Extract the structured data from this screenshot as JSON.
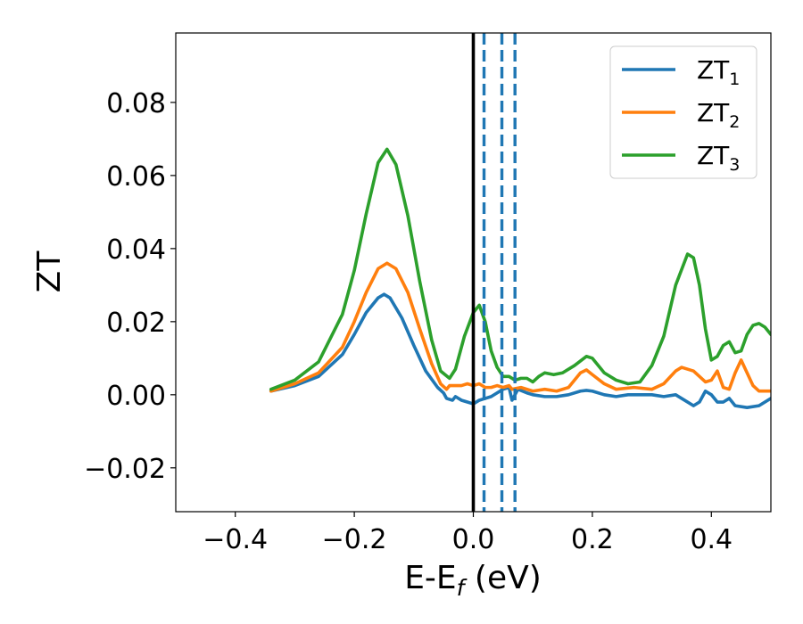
{
  "chart_data": {
    "type": "line",
    "xlabel": {
      "main": "E-E",
      "sub": "f",
      "suffix": " (eV)"
    },
    "ylabel": "ZT",
    "xlim": [
      -0.5,
      0.5
    ],
    "ylim": [
      -0.032,
      0.099
    ],
    "xticks": [
      {
        "value": -0.4,
        "label": "−0.4"
      },
      {
        "value": -0.2,
        "label": "−0.2"
      },
      {
        "value": 0.0,
        "label": "0.0"
      },
      {
        "value": 0.2,
        "label": "0.2"
      },
      {
        "value": 0.4,
        "label": "0.4"
      }
    ],
    "yticks": [
      {
        "value": -0.02,
        "label": "−0.02"
      },
      {
        "value": 0.0,
        "label": "0.00"
      },
      {
        "value": 0.02,
        "label": "0.02"
      },
      {
        "value": 0.04,
        "label": "0.04"
      },
      {
        "value": 0.06,
        "label": "0.06"
      },
      {
        "value": 0.08,
        "label": "0.08"
      }
    ],
    "grid": false,
    "legend_position": "top-right",
    "vertical_lines": [
      {
        "x": 0.0,
        "style": "solid",
        "color": "#000000"
      },
      {
        "x": 0.018,
        "style": "dashed",
        "color": "#1f77b4"
      },
      {
        "x": 0.048,
        "style": "dashed",
        "color": "#1f77b4"
      },
      {
        "x": 0.07,
        "style": "dashed",
        "color": "#1f77b4"
      }
    ],
    "series": [
      {
        "name": "ZT",
        "name_sub": "1",
        "color": "#1f77b4",
        "points": [
          [
            -0.34,
            0.001
          ],
          [
            -0.3,
            0.0025
          ],
          [
            -0.26,
            0.005
          ],
          [
            -0.22,
            0.011
          ],
          [
            -0.2,
            0.0165
          ],
          [
            -0.18,
            0.0225
          ],
          [
            -0.16,
            0.0265
          ],
          [
            -0.15,
            0.0275
          ],
          [
            -0.14,
            0.0265
          ],
          [
            -0.12,
            0.021
          ],
          [
            -0.1,
            0.0135
          ],
          [
            -0.08,
            0.0065
          ],
          [
            -0.06,
            0.002
          ],
          [
            -0.05,
            0.0005
          ],
          [
            -0.045,
            -0.001
          ],
          [
            -0.035,
            -0.0015
          ],
          [
            -0.03,
            -0.0005
          ],
          [
            -0.02,
            -0.0015
          ],
          [
            -0.01,
            -0.002
          ],
          [
            0.0,
            -0.0025
          ],
          [
            0.01,
            -0.0015
          ],
          [
            0.02,
            -0.001
          ],
          [
            0.03,
            -0.0005
          ],
          [
            0.04,
            0.0005
          ],
          [
            0.05,
            0.0015
          ],
          [
            0.06,
            0.002
          ],
          [
            0.065,
            -0.0015
          ],
          [
            0.075,
            0.0015
          ],
          [
            0.09,
            0.0005
          ],
          [
            0.1,
            0.0
          ],
          [
            0.12,
            -0.0005
          ],
          [
            0.14,
            -0.0005
          ],
          [
            0.16,
            0.0
          ],
          [
            0.18,
            0.001
          ],
          [
            0.19,
            0.0012
          ],
          [
            0.2,
            0.001
          ],
          [
            0.22,
            0.0
          ],
          [
            0.24,
            -0.0005
          ],
          [
            0.26,
            0.0
          ],
          [
            0.28,
            0.0
          ],
          [
            0.3,
            0.0
          ],
          [
            0.32,
            -0.0005
          ],
          [
            0.34,
            0.0
          ],
          [
            0.35,
            -0.001
          ],
          [
            0.37,
            -0.003
          ],
          [
            0.38,
            -0.002
          ],
          [
            0.39,
            0.001
          ],
          [
            0.4,
            0.0
          ],
          [
            0.41,
            -0.002
          ],
          [
            0.42,
            -0.002
          ],
          [
            0.43,
            -0.001
          ],
          [
            0.44,
            -0.003
          ],
          [
            0.46,
            -0.0035
          ],
          [
            0.48,
            -0.003
          ],
          [
            0.5,
            -0.001
          ]
        ]
      },
      {
        "name": "ZT",
        "name_sub": "2",
        "color": "#ff7f0e",
        "points": [
          [
            -0.34,
            0.001
          ],
          [
            -0.3,
            0.003
          ],
          [
            -0.26,
            0.006
          ],
          [
            -0.22,
            0.013
          ],
          [
            -0.2,
            0.02
          ],
          [
            -0.18,
            0.028
          ],
          [
            -0.16,
            0.0345
          ],
          [
            -0.145,
            0.036
          ],
          [
            -0.13,
            0.0345
          ],
          [
            -0.11,
            0.028
          ],
          [
            -0.09,
            0.018
          ],
          [
            -0.07,
            0.0085
          ],
          [
            -0.055,
            0.003
          ],
          [
            -0.045,
            0.0015
          ],
          [
            -0.04,
            0.0025
          ],
          [
            -0.03,
            0.0025
          ],
          [
            -0.02,
            0.0025
          ],
          [
            -0.01,
            0.003
          ],
          [
            0.0,
            0.0025
          ],
          [
            0.01,
            0.003
          ],
          [
            0.02,
            0.002
          ],
          [
            0.03,
            0.002
          ],
          [
            0.04,
            0.0025
          ],
          [
            0.05,
            0.002
          ],
          [
            0.06,
            0.0025
          ],
          [
            0.065,
            0.0015
          ],
          [
            0.08,
            0.002
          ],
          [
            0.1,
            0.001
          ],
          [
            0.12,
            0.0015
          ],
          [
            0.14,
            0.001
          ],
          [
            0.16,
            0.002
          ],
          [
            0.18,
            0.006
          ],
          [
            0.19,
            0.0068
          ],
          [
            0.2,
            0.0055
          ],
          [
            0.22,
            0.003
          ],
          [
            0.24,
            0.0015
          ],
          [
            0.27,
            0.002
          ],
          [
            0.3,
            0.0015
          ],
          [
            0.32,
            0.003
          ],
          [
            0.34,
            0.0065
          ],
          [
            0.35,
            0.0075
          ],
          [
            0.37,
            0.0065
          ],
          [
            0.39,
            0.0035
          ],
          [
            0.4,
            0.004
          ],
          [
            0.41,
            0.0065
          ],
          [
            0.42,
            0.002
          ],
          [
            0.43,
            0.0015
          ],
          [
            0.44,
            0.006
          ],
          [
            0.45,
            0.0095
          ],
          [
            0.46,
            0.006
          ],
          [
            0.47,
            0.0025
          ],
          [
            0.48,
            0.001
          ],
          [
            0.5,
            0.001
          ]
        ]
      },
      {
        "name": "ZT",
        "name_sub": "3",
        "color": "#2ca02c",
        "points": [
          [
            -0.34,
            0.0015
          ],
          [
            -0.3,
            0.004
          ],
          [
            -0.26,
            0.009
          ],
          [
            -0.22,
            0.022
          ],
          [
            -0.2,
            0.034
          ],
          [
            -0.18,
            0.0495
          ],
          [
            -0.16,
            0.0635
          ],
          [
            -0.145,
            0.0672
          ],
          [
            -0.13,
            0.063
          ],
          [
            -0.11,
            0.049
          ],
          [
            -0.09,
            0.031
          ],
          [
            -0.07,
            0.015
          ],
          [
            -0.055,
            0.0065
          ],
          [
            -0.04,
            0.0045
          ],
          [
            -0.03,
            0.007
          ],
          [
            -0.015,
            0.016
          ],
          [
            0.0,
            0.0225
          ],
          [
            0.01,
            0.0245
          ],
          [
            0.02,
            0.02
          ],
          [
            0.03,
            0.012
          ],
          [
            0.04,
            0.0075
          ],
          [
            0.05,
            0.005
          ],
          [
            0.06,
            0.005
          ],
          [
            0.07,
            0.004
          ],
          [
            0.08,
            0.0045
          ],
          [
            0.09,
            0.0045
          ],
          [
            0.1,
            0.0035
          ],
          [
            0.11,
            0.005
          ],
          [
            0.12,
            0.006
          ],
          [
            0.135,
            0.0055
          ],
          [
            0.15,
            0.006
          ],
          [
            0.17,
            0.008
          ],
          [
            0.19,
            0.0105
          ],
          [
            0.2,
            0.01
          ],
          [
            0.22,
            0.006
          ],
          [
            0.24,
            0.004
          ],
          [
            0.26,
            0.003
          ],
          [
            0.28,
            0.0035
          ],
          [
            0.3,
            0.008
          ],
          [
            0.32,
            0.016
          ],
          [
            0.34,
            0.03
          ],
          [
            0.36,
            0.0385
          ],
          [
            0.37,
            0.0375
          ],
          [
            0.38,
            0.03
          ],
          [
            0.39,
            0.018
          ],
          [
            0.4,
            0.0095
          ],
          [
            0.41,
            0.0105
          ],
          [
            0.42,
            0.0135
          ],
          [
            0.43,
            0.0145
          ],
          [
            0.44,
            0.0115
          ],
          [
            0.45,
            0.012
          ],
          [
            0.46,
            0.0165
          ],
          [
            0.47,
            0.019
          ],
          [
            0.48,
            0.0195
          ],
          [
            0.49,
            0.0185
          ],
          [
            0.5,
            0.0165
          ]
        ]
      }
    ]
  }
}
